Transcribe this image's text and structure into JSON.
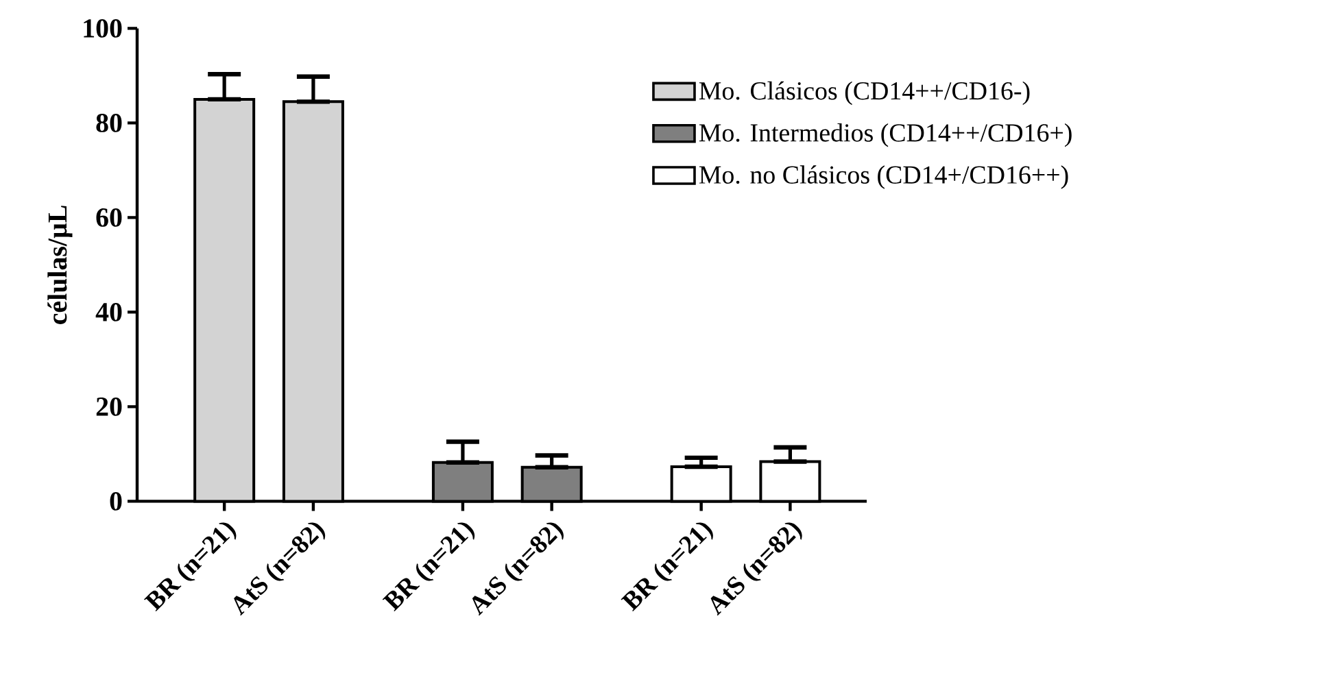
{
  "chart_data": {
    "type": "bar",
    "ylabel": "células/µL",
    "categories": [
      "BR (n=21)",
      "AtS (n=82)",
      "BR (n=21)",
      "AtS (n=82)",
      "BR (n=21)",
      "AtS (n=82)"
    ],
    "series": [
      {
        "name": "Mo. Clásicos (CD14++/CD16-)",
        "color": "#d3d3d3",
        "values": [
          85,
          84.5,
          null,
          null,
          null,
          null
        ],
        "errors": [
          [
            85,
            90.3
          ],
          [
            84.5,
            89.8
          ],
          null,
          null,
          null,
          null
        ]
      },
      {
        "name": "Mo. Intermedios (CD14++/CD16+)",
        "color": "#7f7f7f",
        "values": [
          null,
          null,
          8.2,
          7.2,
          null,
          null
        ],
        "errors": [
          null,
          null,
          [
            8.2,
            12.6
          ],
          [
            7.2,
            9.7
          ],
          null,
          null
        ]
      },
      {
        "name": "Mo. no Clásicos (CD14+/CD16++)",
        "color": "#ffffff",
        "values": [
          null,
          null,
          null,
          null,
          7.3,
          8.4
        ],
        "errors": [
          null,
          null,
          null,
          null,
          [
            7.3,
            9.2
          ],
          [
            8.4,
            11.4
          ]
        ]
      }
    ],
    "ylim": [
      0,
      100
    ],
    "yticks": [
      0,
      20,
      40,
      60,
      80,
      100
    ],
    "legend": "top right",
    "grid": false
  }
}
